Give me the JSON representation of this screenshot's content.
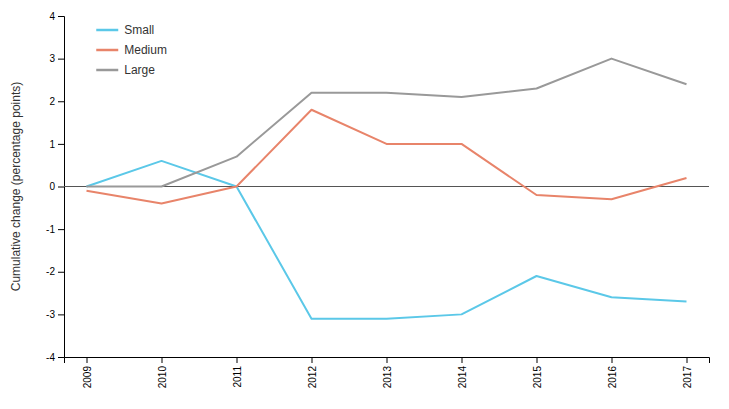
{
  "chart_data": {
    "type": "line",
    "y_label": "Cumulative change (percentage points)",
    "categories": [
      "2009",
      "2010",
      "2011",
      "2012",
      "2013",
      "2014",
      "2015",
      "2016",
      "2017"
    ],
    "series": [
      {
        "name": "Small",
        "color": "#5bc8e8",
        "values": [
          0.0,
          0.6,
          0.0,
          -3.1,
          -3.1,
          -3.0,
          -2.1,
          -2.6,
          -2.7
        ]
      },
      {
        "name": "Medium",
        "color": "#e8846a",
        "values": [
          -0.1,
          -0.4,
          0.0,
          1.8,
          1.0,
          1.0,
          -0.2,
          -0.3,
          0.2
        ]
      },
      {
        "name": "Large",
        "color": "#999999",
        "values": [
          0.0,
          0.0,
          0.7,
          2.2,
          2.2,
          2.1,
          2.3,
          3.0,
          2.4
        ]
      }
    ],
    "ylim": [
      -4,
      4
    ],
    "yticks": [
      -4,
      -3,
      -2,
      -1,
      0,
      1,
      2,
      3,
      4
    ],
    "grid": false,
    "legend": "upper left"
  }
}
